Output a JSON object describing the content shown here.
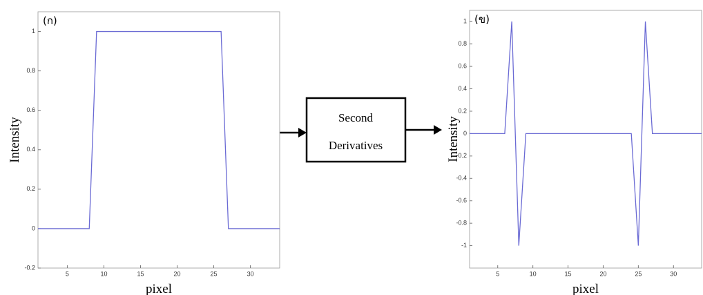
{
  "chart_data": [
    {
      "type": "line",
      "panel_label": "(ก)",
      "xlabel": "pixel",
      "ylabel": "Intensity",
      "x": [
        1,
        8,
        9,
        26,
        27,
        34
      ],
      "values": [
        0,
        0,
        1,
        1,
        0,
        0
      ],
      "color": "#6a6ad4",
      "xlim": [
        1,
        34
      ],
      "ylim": [
        -0.2,
        1.1
      ],
      "xticks": [
        5,
        10,
        15,
        20,
        25,
        30
      ],
      "yticks": [
        -0.2,
        0,
        0.2,
        0.4,
        0.6,
        0.8,
        1
      ],
      "grid": false
    },
    {
      "type": "line",
      "panel_label": "(ข)",
      "xlabel": "pixel",
      "ylabel": "Intensity",
      "x": [
        1,
        6,
        7,
        8,
        9,
        24,
        25,
        26,
        27,
        34
      ],
      "values": [
        0,
        0,
        1,
        -1,
        0,
        0,
        -1,
        1,
        0,
        0
      ],
      "color": "#6a6ad4",
      "xlim": [
        1,
        34
      ],
      "ylim": [
        -1.2,
        1.1
      ],
      "xticks": [
        5,
        10,
        15,
        20,
        25,
        30
      ],
      "yticks": [
        -1,
        -0.8,
        -0.6,
        -0.4,
        -0.2,
        0,
        0.2,
        0.4,
        0.6,
        0.8,
        1
      ],
      "grid": false
    }
  ],
  "diagram": {
    "label_lines": [
      "Second",
      "Derivatives"
    ]
  }
}
